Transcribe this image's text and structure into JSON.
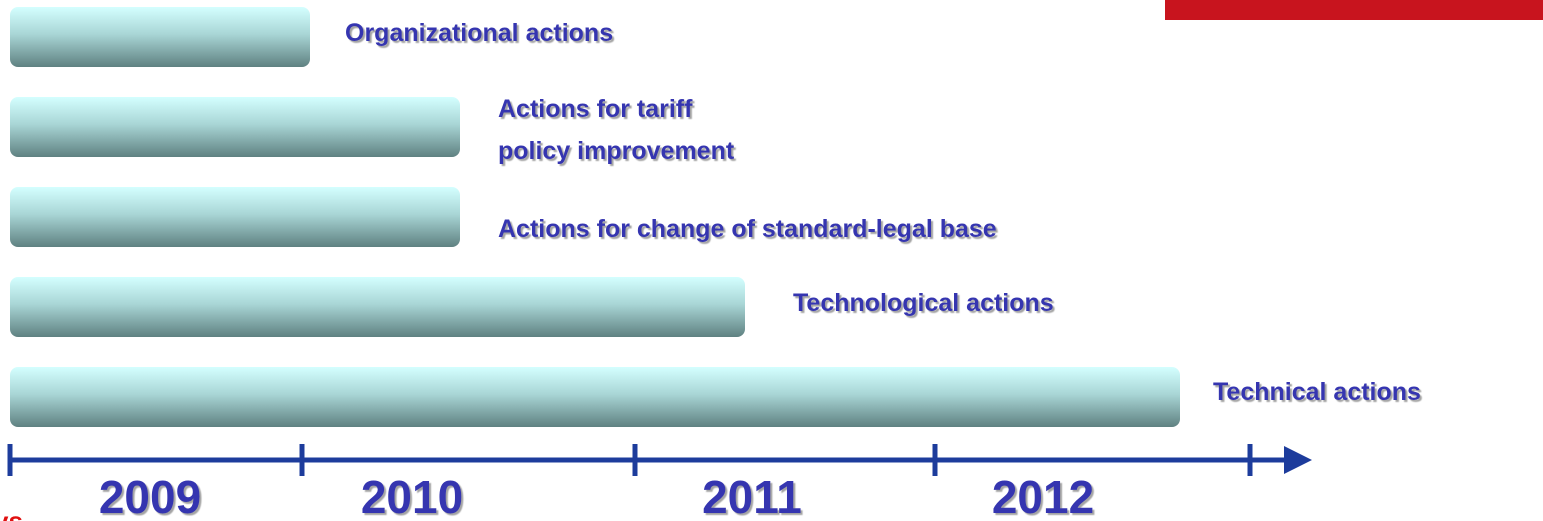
{
  "actions": [
    {
      "label": [
        "Organizational actions"
      ]
    },
    {
      "label": [
        "Actions for tariff",
        "policy improvement"
      ]
    },
    {
      "label": [
        "Actions for change of standard-legal base"
      ]
    },
    {
      "label": [
        "Technological actions"
      ]
    },
    {
      "label": [
        "Technical actions"
      ]
    }
  ],
  "years": [
    "2009",
    "2010",
    "2011",
    "2012"
  ],
  "footer_fragment": "ys"
}
